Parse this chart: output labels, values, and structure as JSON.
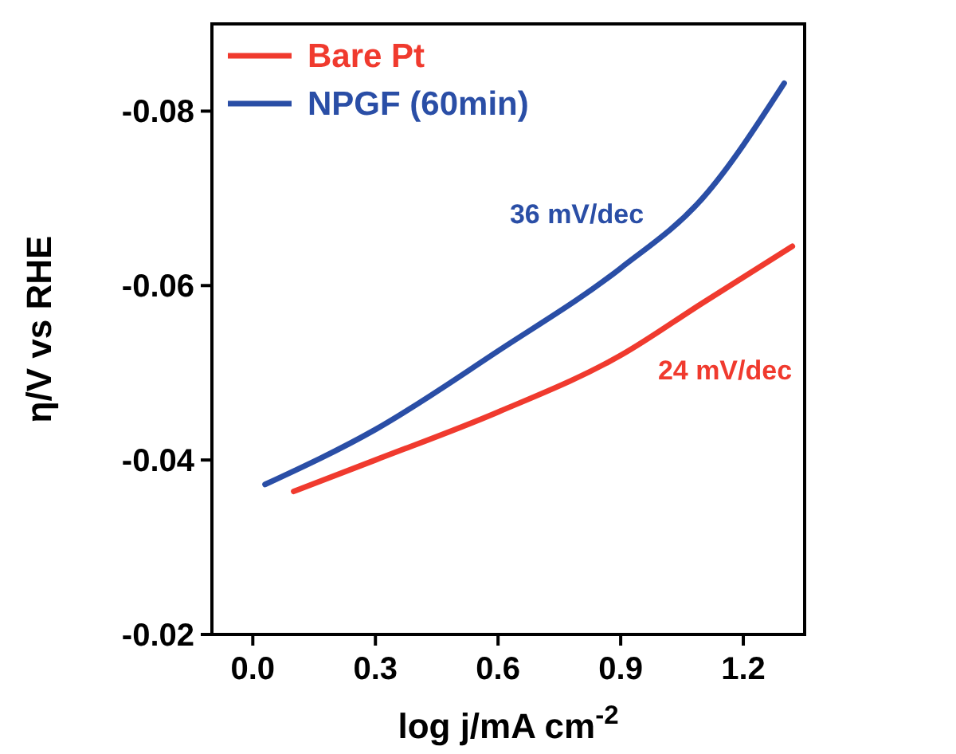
{
  "chart_data": {
    "type": "line",
    "xlabel": "log j/mA cm$^{-2}$",
    "ylabel": "η/V vs RHE",
    "xlim": [
      -0.1,
      1.35
    ],
    "ylim": [
      -0.02,
      -0.09
    ],
    "xticks": [
      {
        "value": 0,
        "label": "0.0"
      },
      0.3,
      0.6,
      0.9,
      1.2
    ],
    "yticks": [
      -0.02,
      -0.04,
      -0.06,
      -0.08
    ],
    "legend": "top left",
    "grid": false,
    "marker": "none",
    "line_style": "solid",
    "series": [
      {
        "name": "Bare Pt",
        "color": "#f03a2e",
        "x": [
          0.1,
          0.3,
          0.6,
          0.9,
          1.1,
          1.32
        ],
        "values": [
          -0.0364,
          -0.04,
          -0.0455,
          -0.052,
          -0.058,
          -0.0645
        ]
      },
      {
        "name": "NPGF (60min)",
        "color": "#2a4ea6",
        "x": [
          0.03,
          0.3,
          0.6,
          0.9,
          1.1,
          1.3
        ],
        "values": [
          -0.0372,
          -0.0435,
          -0.0525,
          -0.062,
          -0.07,
          -0.0832
        ]
      }
    ],
    "annotations": [
      "24 mV/dec",
      "36 mV/dec"
    ]
  }
}
